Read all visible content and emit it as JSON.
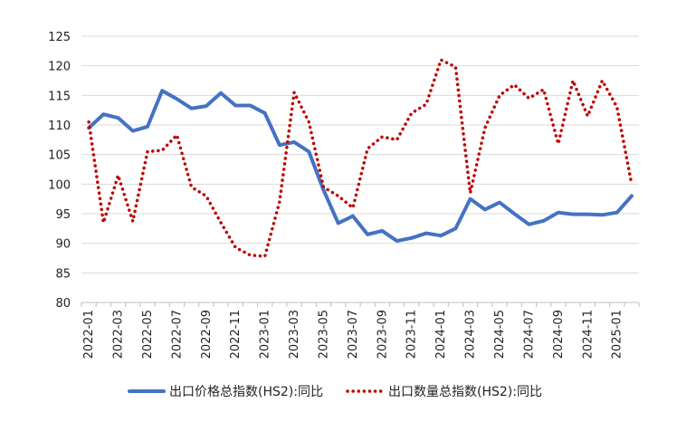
{
  "chart_data": {
    "type": "line",
    "title": "",
    "xlabel": "",
    "ylabel": "",
    "ylim": [
      80,
      125
    ],
    "yticks": [
      80,
      85,
      90,
      95,
      100,
      105,
      110,
      115,
      120,
      125
    ],
    "grid": "horizontal",
    "legend_position": "bottom",
    "categories": [
      "2022-01",
      "2022-02",
      "2022-03",
      "2022-04",
      "2022-05",
      "2022-06",
      "2022-07",
      "2022-08",
      "2022-09",
      "2022-10",
      "2022-11",
      "2022-12",
      "2023-01",
      "2023-02",
      "2023-03",
      "2023-04",
      "2023-05",
      "2023-06",
      "2023-07",
      "2023-08",
      "2023-09",
      "2023-10",
      "2023-11",
      "2023-12",
      "2024-01",
      "2024-02",
      "2024-03",
      "2024-04",
      "2024-05",
      "2024-06",
      "2024-07",
      "2024-08",
      "2024-09",
      "2024-10",
      "2024-11",
      "2024-12",
      "2025-01",
      "2025-02"
    ],
    "tick_labels": [
      "2022-01",
      "2022-03",
      "2022-05",
      "2022-07",
      "2022-09",
      "2022-11",
      "2023-01",
      "2023-03",
      "2023-05",
      "2023-07",
      "2023-09",
      "2023-11",
      "2024-01",
      "2024-03",
      "2024-05",
      "2024-07",
      "2024-09",
      "2024-11",
      "2025-01"
    ],
    "series": [
      {
        "name": "出口价格总指数(HS2):同比",
        "color": "#4472C4",
        "style": "solid",
        "values": [
          109.5,
          111.8,
          111.2,
          109.0,
          109.7,
          115.8,
          114.4,
          112.8,
          113.2,
          115.4,
          113.3,
          113.3,
          112.0,
          106.6,
          107.1,
          105.5,
          99.0,
          93.4,
          94.6,
          91.5,
          92.1,
          90.4,
          90.9,
          91.7,
          91.3,
          92.5,
          97.5,
          95.7,
          96.9,
          95.0,
          93.2,
          93.8,
          95.2,
          94.9,
          94.9,
          94.8,
          95.2,
          98.0
        ]
      },
      {
        "name": "出口数量总指数(HS2):同比",
        "color": "#C00000",
        "style": "dotted",
        "values": [
          110.5,
          93.5,
          101.5,
          93.7,
          105.5,
          105.7,
          108.3,
          99.5,
          98.0,
          93.5,
          89.3,
          88.0,
          87.8,
          97.0,
          115.5,
          110.5,
          99.5,
          98.0,
          96.0,
          106.0,
          108.0,
          107.5,
          112.0,
          113.5,
          121.0,
          119.8,
          98.5,
          109.5,
          115.0,
          116.8,
          114.5,
          116.0,
          106.8,
          117.5,
          111.5,
          117.5,
          113.0,
          100.0
        ]
      }
    ]
  }
}
